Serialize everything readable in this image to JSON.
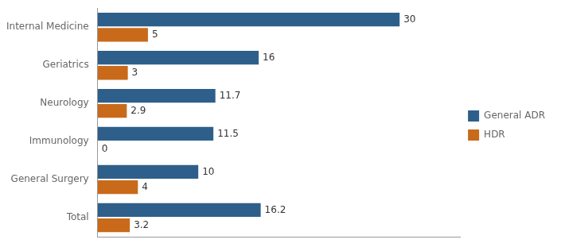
{
  "chart_data": {
    "type": "bar",
    "orientation": "horizontal",
    "categories": [
      "Internal Medicine",
      "Geriatrics",
      "Neurology",
      "Immunology",
      "General Surgery",
      "Total"
    ],
    "series": [
      {
        "name": "General ADR",
        "color": "#2E5F8A",
        "values": [
          30,
          16,
          11.7,
          11.5,
          10,
          16.2
        ]
      },
      {
        "name": "HDR",
        "color": "#C86A1A",
        "values": [
          5,
          3,
          2.9,
          0,
          4,
          3.2
        ]
      }
    ],
    "xlim": [
      0,
      36
    ],
    "data_labels": true,
    "tick_labels": "y",
    "grid": false,
    "legend": "right"
  }
}
